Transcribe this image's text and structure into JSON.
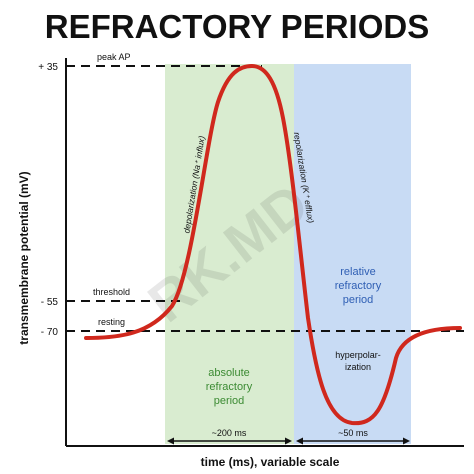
{
  "title": "REFRACTORY PERIODS",
  "axis": {
    "ylabel": "transmembrane potential (mV)",
    "xlabel": "time (ms), variable scale",
    "yticks": [
      "+ 35",
      "- 55",
      "- 70"
    ]
  },
  "levels": {
    "peak": "peak AP",
    "threshold": "threshold",
    "resting": "resting"
  },
  "phases": {
    "depolarization": "depolarization (Na⁺ influx)",
    "repolarization": "repolarization (K⁺ efflux)",
    "hyperpolarization": [
      "hyperpolar-",
      "ization"
    ]
  },
  "regions": {
    "absolute": {
      "lines": [
        "absolute",
        "refractory",
        "period"
      ],
      "duration": "~200 ms",
      "fill": "#d9ecd0",
      "text_color": "#3c8b33"
    },
    "relative": {
      "lines": [
        "relative",
        "refractory",
        "period"
      ],
      "duration": "~50 ms",
      "fill": "#c8dbf4",
      "text_color": "#2f5fb4"
    }
  },
  "watermark": "RK.MD",
  "colors": {
    "curve": "#d0281d",
    "axis": "#111111"
  }
}
